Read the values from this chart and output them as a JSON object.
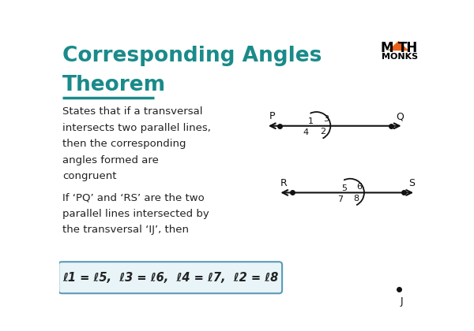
{
  "title_line1": "Corresponding Angles",
  "title_line2": "Theorem",
  "title_color": "#1a8a8a",
  "underline_color": "#1a8a8a",
  "body_text1": "States that if a transversal\nintersects two parallel lines,\nthen the corresponding\nangles formed are\ncongruent",
  "body_text2": "If ‘PQ’ and ‘RS’ are the two\nparallel lines intersected by\nthe transversal ‘IJ’, then",
  "formula_text": "ℓ1 = ℓ5,  ℓ3 = ℓ6,  ℓ4 = ℓ7,  ℓ2 = ℓ8",
  "formula_bg": "#e8f4f8",
  "formula_border": "#5a9ab5",
  "background_color": "#ffffff",
  "text_color": "#222222",
  "logo_triangle_color": "#e8621a",
  "diagram_color": "#111111",
  "arc_color": "#111111",
  "ix1": 4.2,
  "iy1": 2.78,
  "ix2": 4.75,
  "iy2": 1.68
}
